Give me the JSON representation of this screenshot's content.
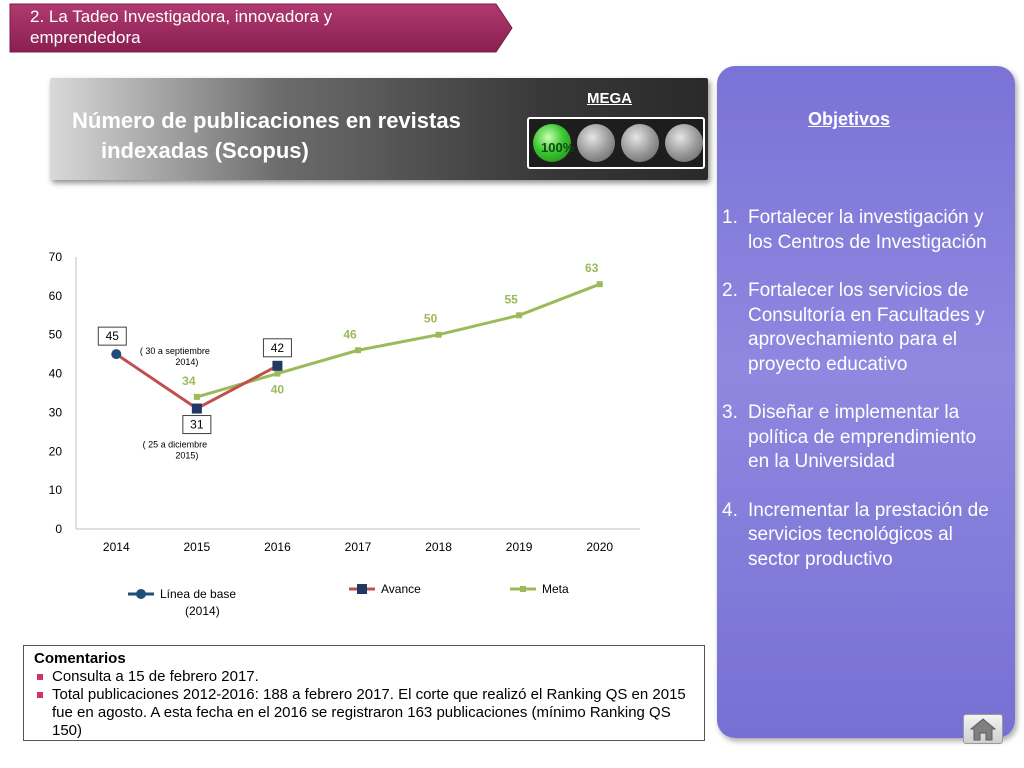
{
  "header": {
    "section_line1": "2. La Tadeo Investigadora, innovadora y",
    "section_line2": "emprendedora",
    "title_line1": "Número de publicaciones en revistas",
    "title_line2": "indexadas (Scopus)",
    "mega_label": "MEGA",
    "indicator_text": "100%",
    "indicator_lights": [
      "on",
      "off",
      "off",
      "off"
    ]
  },
  "objectives": {
    "title": "Objetivos",
    "items": [
      {
        "num": "1.",
        "text": "Fortalecer la investigación y los Centros de Investigación"
      },
      {
        "num": "2.",
        "text": "Fortalecer los servicios de Consultoría en Facultades y aprovechamiento para el proyecto educativo"
      },
      {
        "num": "3.",
        "text": "Diseñar e implementar la política de emprendimiento en la Universidad"
      },
      {
        "num": "4.",
        "text": "Incrementar la prestación de servicios tecnológicos al sector productivo"
      }
    ]
  },
  "chart_data": {
    "type": "line",
    "title": "",
    "xlabel": "",
    "ylabel": "",
    "ylim": [
      0,
      70
    ],
    "yticks": [
      0,
      10,
      20,
      30,
      40,
      50,
      60,
      70
    ],
    "categories": [
      "2014",
      "2015",
      "2016",
      "2017",
      "2018",
      "2019",
      "2020"
    ],
    "grid": false,
    "legend_position": "bottom",
    "series": [
      {
        "name": "Línea de base (2014)",
        "legend_lines": [
          "Línea de base",
          "(2014)"
        ],
        "color": "#1f4e79",
        "marker": "circle",
        "points": [
          {
            "x": "2014",
            "y": 45
          }
        ]
      },
      {
        "name": "Avance",
        "legend_lines": [
          "Avance"
        ],
        "color": "#c0504d",
        "marker_color": "#1f3864",
        "marker": "square",
        "points": [
          {
            "x": "2014",
            "y": 45
          },
          {
            "x": "2015",
            "y": 31
          },
          {
            "x": "2016",
            "y": 42
          }
        ]
      },
      {
        "name": "Meta",
        "legend_lines": [
          "Meta"
        ],
        "color": "#9bbb59",
        "marker": "square",
        "points": [
          {
            "x": "2015",
            "y": 34
          },
          {
            "x": "2016",
            "y": 40
          },
          {
            "x": "2017",
            "y": 46
          },
          {
            "x": "2018",
            "y": 50
          },
          {
            "x": "2019",
            "y": 55
          },
          {
            "x": "2020",
            "y": 63
          }
        ]
      }
    ],
    "annotations": [
      {
        "text": "( 30 a septiembre",
        "text2": "2014)",
        "x": "2015",
        "y": 45
      },
      {
        "text": "( 25 a diciembre",
        "text2": "2015)",
        "x": "2015",
        "y": 21
      }
    ]
  },
  "comments": {
    "title": "Comentarios",
    "items": [
      "Consulta a 15 de febrero 2017.",
      "Total publicaciones 2012-2016: 188 a febrero 2017. El corte que realizó el Ranking QS en 2015 fue en agosto. A  esta fecha en el 2016 se  registraron 163 publicaciones (mínimo Ranking QS 150)"
    ]
  }
}
